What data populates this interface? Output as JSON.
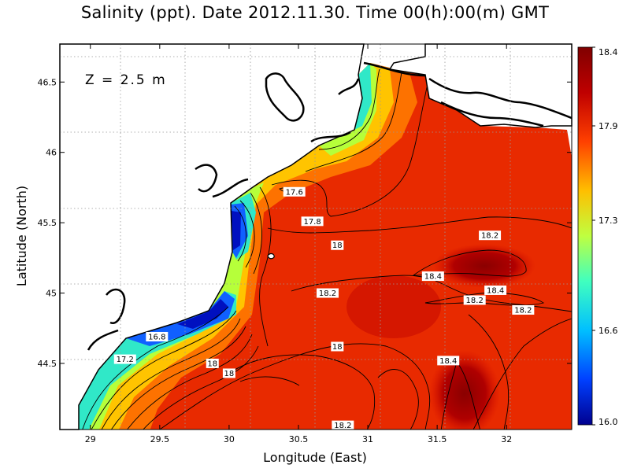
{
  "title": "Salinity (ppt). Date 2012.11.30. Time 00(h):00(m) GMT",
  "depth_label": "Z = 2.5 m",
  "x_axis": {
    "label": "Longitude (East)",
    "ticks": [
      29,
      29.5,
      30,
      30.5,
      31,
      31.5,
      32
    ],
    "tick_labels": [
      "29",
      "29.5",
      "30",
      "30.5",
      "31",
      "31.5",
      "32"
    ],
    "range": [
      28.78,
      32.47
    ]
  },
  "y_axis": {
    "label": "Latitude (North)",
    "ticks": [
      44.5,
      45,
      45.5,
      46,
      46.5
    ],
    "tick_labels": [
      "44.5",
      "45",
      "45.5",
      "46",
      "46.5"
    ],
    "range": [
      44.03,
      46.77
    ]
  },
  "colorbar": {
    "min": 16.0,
    "max": 18.4,
    "tick_labels": [
      "16.0",
      "16.6",
      "17.3",
      "17.9",
      "18.4"
    ],
    "tick_values": [
      16.0,
      16.6,
      17.3,
      17.9,
      18.4
    ],
    "colors": [
      "#00008f",
      "#0040ff",
      "#00bfff",
      "#40ffbf",
      "#bfff40",
      "#ffbf00",
      "#ff4000",
      "#bf0000",
      "#800000"
    ]
  },
  "chart_data": {
    "type": "heatmap",
    "title": "Salinity (ppt). Date 2012.11.30. Time 00(h):00(m) GMT",
    "xlabel": "Longitude (East)",
    "ylabel": "Latitude (North)",
    "xlim": [
      28.78,
      32.47
    ],
    "ylim": [
      44.03,
      46.77
    ],
    "grid": true,
    "value_range": [
      16.0,
      18.4
    ],
    "contour_labels": [
      {
        "text": "17.6",
        "lon": 30.47,
        "lat": 45.72
      },
      {
        "text": "17.8",
        "lon": 30.6,
        "lat": 45.51
      },
      {
        "text": "18",
        "lon": 30.78,
        "lat": 45.34
      },
      {
        "text": "18.2",
        "lon": 31.88,
        "lat": 45.41
      },
      {
        "text": "18.4",
        "lon": 31.47,
        "lat": 45.12
      },
      {
        "text": "18.4",
        "lon": 31.92,
        "lat": 45.02
      },
      {
        "text": "18.2",
        "lon": 31.77,
        "lat": 44.95
      },
      {
        "text": "18.2",
        "lon": 32.12,
        "lat": 44.88
      },
      {
        "text": "18.2",
        "lon": 30.71,
        "lat": 45.0
      },
      {
        "text": "16.8",
        "lon": 29.48,
        "lat": 44.69
      },
      {
        "text": "17.2",
        "lon": 29.25,
        "lat": 44.53
      },
      {
        "text": "18",
        "lon": 30.78,
        "lat": 44.62
      },
      {
        "text": "18",
        "lon": 29.88,
        "lat": 44.5
      },
      {
        "text": "18",
        "lon": 30.0,
        "lat": 44.43
      },
      {
        "text": "18.4",
        "lon": 31.58,
        "lat": 44.52
      },
      {
        "text": "18.2",
        "lon": 30.82,
        "lat": 44.06
      }
    ]
  }
}
